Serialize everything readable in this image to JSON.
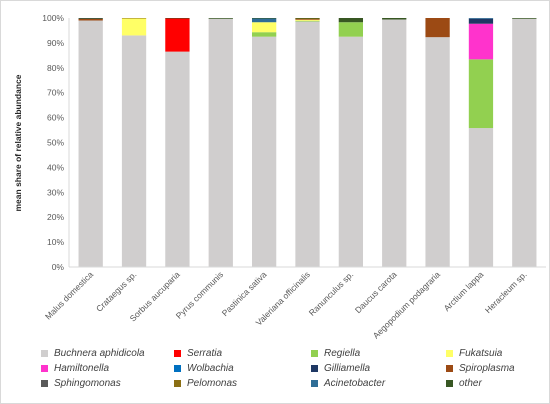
{
  "chart_data": {
    "type": "bar",
    "stacked": true,
    "ylabel": "mean share of relative abundance",
    "xlabel": "",
    "ylim": [
      0,
      100
    ],
    "yticks": [
      "0%",
      "10%",
      "20%",
      "30%",
      "40%",
      "50%",
      "60%",
      "70%",
      "80%",
      "90%",
      "100%"
    ],
    "grid": false,
    "legend_position": "bottom",
    "categories": [
      "Malus domestica",
      "Crataegus sp.",
      "Sorbus aucuparia",
      "Pyrus communis",
      "Pastinica sativa",
      "Valeriana officinalis",
      "Ranunculus sp.",
      "Daucus carota",
      "Aegopodium podagraria",
      "Arctium lappa",
      "Heracleum sp."
    ],
    "series": [
      {
        "name": "Buchnera aphidicola",
        "color": "#d0cece",
        "values": [
          99.0,
          93.0,
          86.5,
          99.7,
          92.5,
          98.6,
          92.5,
          99.4,
          92.3,
          55.8,
          99.7
        ]
      },
      {
        "name": "Serratia",
        "color": "#ff0000",
        "values": [
          0,
          0,
          13.4,
          0,
          0,
          0,
          0,
          0,
          0,
          0,
          0
        ]
      },
      {
        "name": "Regiella",
        "color": "#92d050",
        "values": [
          0,
          0,
          0,
          0,
          1.8,
          0.3,
          5.8,
          0,
          0,
          27.6,
          0
        ]
      },
      {
        "name": "Fukatsuia",
        "color": "#ffff66",
        "values": [
          0,
          6.8,
          0,
          0,
          4.0,
          0.4,
          0,
          0,
          0,
          0,
          0
        ]
      },
      {
        "name": "Hamiltonella",
        "color": "#ff33cc",
        "values": [
          0,
          0,
          0,
          0,
          0,
          0,
          0,
          0,
          0,
          14.3,
          0
        ]
      },
      {
        "name": "Wolbachia",
        "color": "#0070c0",
        "values": [
          0,
          0,
          0,
          0,
          0,
          0,
          0,
          0,
          0,
          0,
          0
        ]
      },
      {
        "name": "Gilliamella",
        "color": "#1f3864",
        "values": [
          0,
          0,
          0,
          0,
          0,
          0,
          0,
          0,
          0,
          2.0,
          0
        ]
      },
      {
        "name": "Spiroplasma",
        "color": "#9c4a14",
        "values": [
          0.6,
          0,
          0,
          0,
          0,
          0.3,
          0,
          0,
          7.7,
          0,
          0
        ]
      },
      {
        "name": "Sphingomonas",
        "color": "#595959",
        "values": [
          0.2,
          0,
          0,
          0,
          0,
          0,
          0,
          0,
          0,
          0,
          0
        ]
      },
      {
        "name": "Pelomonas",
        "color": "#8b6f14",
        "values": [
          0,
          0.2,
          0,
          0,
          0,
          0.3,
          0,
          0,
          0,
          0,
          0
        ]
      },
      {
        "name": "Acinetobacter",
        "color": "#2e6d96",
        "values": [
          0,
          0,
          0,
          0,
          1.5,
          0,
          0,
          0,
          0,
          0.3,
          0
        ]
      },
      {
        "name": "other",
        "color": "#385723",
        "values": [
          0.2,
          0,
          0.1,
          0.3,
          0.2,
          0.1,
          1.7,
          0.6,
          0,
          0,
          0.3
        ]
      }
    ]
  }
}
